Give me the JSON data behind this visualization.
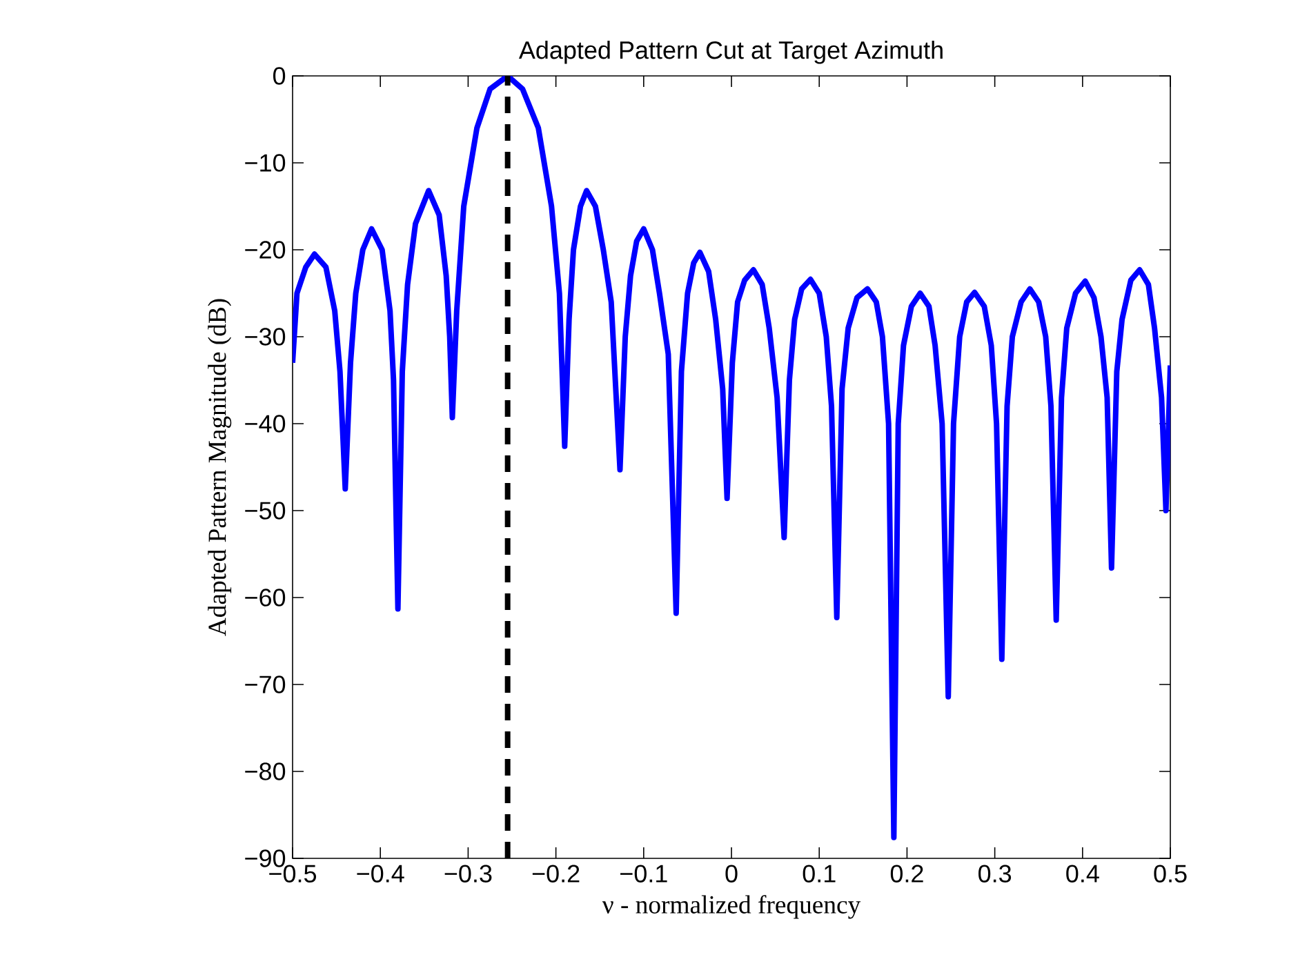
{
  "chart_data": {
    "type": "line",
    "title": "Adapted Pattern Cut at Target Azimuth",
    "xlabel": "ν - normalized frequency",
    "ylabel": "Adapted Pattern Magnitude (dB)",
    "xlim": [
      -0.5,
      0.5
    ],
    "ylim": [
      -90,
      0
    ],
    "xticks": [
      {
        "value": -0.5,
        "label": "−0.5"
      },
      {
        "value": -0.4,
        "label": "−0.4"
      },
      {
        "value": -0.3,
        "label": "−0.3"
      },
      {
        "value": -0.2,
        "label": "−0.2"
      },
      {
        "value": -0.1,
        "label": "−0.1"
      },
      0,
      0.1,
      0.2,
      0.3,
      0.4,
      0.5
    ],
    "yticks": [
      {
        "value": -90,
        "label": "−90"
      },
      {
        "value": -80,
        "label": "−80"
      },
      {
        "value": -70,
        "label": "−70"
      },
      {
        "value": -60,
        "label": "−60"
      },
      {
        "value": -50,
        "label": "−50"
      },
      {
        "value": -40,
        "label": "−40"
      },
      {
        "value": -30,
        "label": "−30"
      },
      {
        "value": -20,
        "label": "−20"
      },
      {
        "value": -10,
        "label": "−10"
      },
      0
    ],
    "line_style": "solid",
    "ref_lines": [
      {
        "axis": "x",
        "value": -0.255,
        "color": "#000000",
        "line_style": "dashed"
      }
    ],
    "series": [
      {
        "color": "#0000ff",
        "x": [
          -0.5,
          -0.495,
          -0.485,
          -0.475,
          -0.462,
          -0.452,
          -0.446,
          -0.44,
          -0.434,
          -0.428,
          -0.42,
          -0.41,
          -0.398,
          -0.389,
          -0.385,
          -0.38,
          -0.375,
          -0.369,
          -0.36,
          -0.345,
          -0.333,
          -0.325,
          -0.321,
          -0.318,
          -0.313,
          -0.305,
          -0.29,
          -0.275,
          -0.255,
          -0.238,
          -0.22,
          -0.205,
          -0.196,
          -0.19,
          -0.185,
          -0.18,
          -0.172,
          -0.165,
          -0.155,
          -0.146,
          -0.137,
          -0.127,
          -0.121,
          -0.115,
          -0.108,
          -0.1,
          -0.09,
          -0.082,
          -0.072,
          -0.063,
          -0.057,
          -0.05,
          -0.043,
          -0.036,
          -0.026,
          -0.018,
          -0.01,
          -0.005,
          0.001,
          0.007,
          0.015,
          0.025,
          0.035,
          0.043,
          0.052,
          0.06,
          0.066,
          0.072,
          0.08,
          0.09,
          0.1,
          0.108,
          0.114,
          0.12,
          0.126,
          0.133,
          0.143,
          0.155,
          0.165,
          0.172,
          0.179,
          0.185,
          0.19,
          0.196,
          0.205,
          0.215,
          0.225,
          0.232,
          0.24,
          0.247,
          0.253,
          0.26,
          0.268,
          0.277,
          0.288,
          0.296,
          0.302,
          0.308,
          0.314,
          0.32,
          0.33,
          0.34,
          0.35,
          0.358,
          0.364,
          0.37,
          0.376,
          0.382,
          0.392,
          0.403,
          0.413,
          0.421,
          0.428,
          0.433,
          0.439,
          0.445,
          0.455,
          0.465,
          0.475,
          0.482,
          0.49,
          0.495,
          0.5
        ],
        "values": [
          -33,
          -25,
          -22,
          -20.5,
          -22,
          -27,
          -34,
          -47.5,
          -33,
          -25,
          -20,
          -17.6,
          -20,
          -27,
          -35,
          -61.3,
          -34,
          -24,
          -17,
          -13.2,
          -16,
          -23,
          -30,
          -39.3,
          -27,
          -15,
          -6,
          -1.5,
          0,
          -1.5,
          -6,
          -15,
          -25,
          -42.6,
          -28,
          -20,
          -15,
          -13.2,
          -15,
          -20,
          -26,
          -45.3,
          -30,
          -23,
          -19,
          -17.6,
          -20,
          -25,
          -32,
          -61.8,
          -34,
          -25,
          -21.5,
          -20.3,
          -22.5,
          -28,
          -36,
          -48.6,
          -33,
          -26,
          -23.5,
          -22.3,
          -24,
          -29,
          -37,
          -53.1,
          -35,
          -28,
          -24.5,
          -23.4,
          -25,
          -30,
          -38,
          -62.3,
          -36,
          -29,
          -25.5,
          -24.5,
          -26,
          -30,
          -40,
          -87.6,
          -40,
          -31,
          -26.5,
          -25,
          -26.5,
          -31,
          -40,
          -71.4,
          -40,
          -30,
          -26,
          -24.9,
          -26.5,
          -31,
          -40,
          -67.1,
          -38,
          -30,
          -26,
          -24.5,
          -26,
          -30,
          -38,
          -62.6,
          -37,
          -29,
          -25,
          -23.6,
          -25.5,
          -30,
          -37,
          -56.6,
          -34,
          -28,
          -23.5,
          -22.3,
          -24,
          -29,
          -37,
          -50,
          -33.3
        ]
      }
    ]
  }
}
